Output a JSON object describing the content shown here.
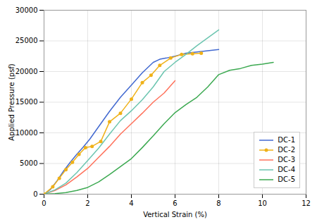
{
  "chart_data": {
    "type": "line",
    "xlabel": "Vertical Strain (%)",
    "ylabel": "Applied Pressure (psf)",
    "xlim": [
      0,
      12
    ],
    "ylim": [
      0,
      30000
    ],
    "xticks": [
      0,
      2,
      4,
      6,
      8,
      10,
      12
    ],
    "yticks": [
      0,
      5000,
      10000,
      15000,
      20000,
      25000,
      30000
    ],
    "grid": true,
    "legend": "lower right",
    "series": [
      {
        "name": "DC-1",
        "x": [
          0,
          0.3,
          0.6,
          0.9,
          1.2,
          1.5,
          1.8,
          2.1,
          2.5,
          3.0,
          3.5,
          4.0,
          4.5,
          5.0,
          5.3,
          5.6,
          6.0,
          6.5,
          7.0,
          7.5,
          8.0
        ],
        "values": [
          0,
          800,
          2200,
          3800,
          5200,
          6500,
          7700,
          9000,
          11000,
          13500,
          15800,
          17800,
          19800,
          21500,
          22000,
          22200,
          22500,
          23000,
          23200,
          23400,
          23600
        ]
      },
      {
        "name": "DC-2",
        "marker": "circle",
        "x": [
          0,
          0.4,
          0.7,
          1.0,
          1.3,
          1.6,
          1.9,
          2.2,
          2.6,
          3.0,
          3.5,
          4.0,
          4.5,
          4.9,
          5.3,
          5.8,
          6.3,
          6.8,
          7.2
        ],
        "values": [
          0,
          1200,
          2600,
          4000,
          5200,
          6500,
          7600,
          7800,
          8600,
          11800,
          13200,
          15500,
          18200,
          19400,
          21000,
          22200,
          22800,
          22900,
          23000
        ]
      },
      {
        "name": "DC-3",
        "x": [
          0,
          0.5,
          1.0,
          1.5,
          2.0,
          2.5,
          3.0,
          3.5,
          4.0,
          4.5,
          5.0,
          5.5,
          6.0
        ],
        "values": [
          0,
          600,
          1500,
          2800,
          4200,
          6000,
          7800,
          9800,
          11500,
          13200,
          15000,
          16500,
          18500
        ]
      },
      {
        "name": "DC-4",
        "x": [
          0,
          0.5,
          1.0,
          1.5,
          2.0,
          2.5,
          3.0,
          3.5,
          4.0,
          4.5,
          5.0,
          5.5,
          6.0,
          6.5,
          7.0,
          7.5,
          8.0
        ],
        "values": [
          0,
          700,
          1800,
          3500,
          5500,
          7500,
          9800,
          12000,
          13600,
          15400,
          17500,
          20000,
          21500,
          22800,
          24200,
          25500,
          26800
        ]
      },
      {
        "name": "DC-5",
        "x": [
          0,
          0.5,
          1.0,
          1.5,
          2.0,
          2.5,
          3.0,
          3.5,
          4.0,
          4.5,
          5.0,
          5.5,
          6.0,
          6.5,
          7.0,
          7.5,
          8.0,
          8.5,
          9.0,
          9.5,
          10.0,
          10.5
        ],
        "values": [
          0,
          100,
          250,
          600,
          1100,
          2000,
          3200,
          4500,
          5800,
          7600,
          9500,
          11500,
          13300,
          14600,
          15800,
          17500,
          19500,
          20200,
          20500,
          21000,
          21200,
          21500
        ]
      }
    ]
  }
}
